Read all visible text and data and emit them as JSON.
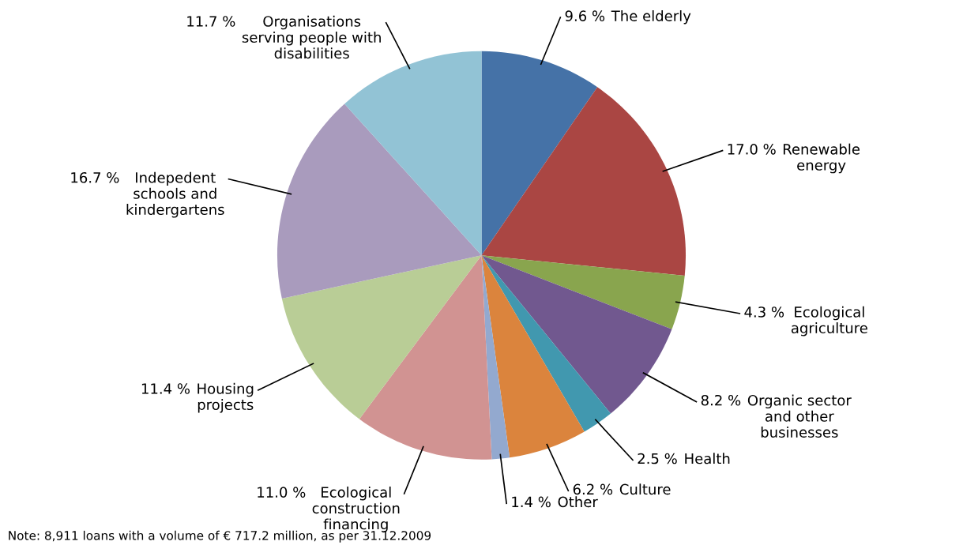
{
  "chart_data": {
    "type": "pie",
    "categories": [
      "The elderly",
      "Renewable\nenergy",
      "Ecological\nagriculture",
      "Organic sector\nand other\nbusinesses",
      "Health",
      "Culture",
      "Other",
      "Ecological\nconstruction\nfinancing",
      "Housing\nprojects",
      "Indepedent\nschools and\nkindergartens",
      "Organisations\nserving people with\ndisabilities"
    ],
    "values": [
      9.6,
      17.0,
      4.3,
      8.2,
      2.5,
      6.2,
      1.4,
      11.0,
      11.4,
      16.7,
      11.7
    ],
    "colors": [
      "#4572a7",
      "#aa4643",
      "#89a54e",
      "#71588f",
      "#4198af",
      "#db843d",
      "#93a9cf",
      "#d19392",
      "#b9cd96",
      "#a99bbd",
      "#92c3d5"
    ],
    "value_labels": [
      "9.6 %",
      "17.0 %",
      "4.3 %",
      "8.2 %",
      "2.5 %",
      "6.2 %",
      "1.4 %",
      "11.0 %",
      "11.4 %",
      "16.7 %",
      "11.7 %"
    ],
    "annotations": [
      "Note: 8,911 loans with a volume of € 717.2 million, as per 31.12.2009"
    ]
  }
}
